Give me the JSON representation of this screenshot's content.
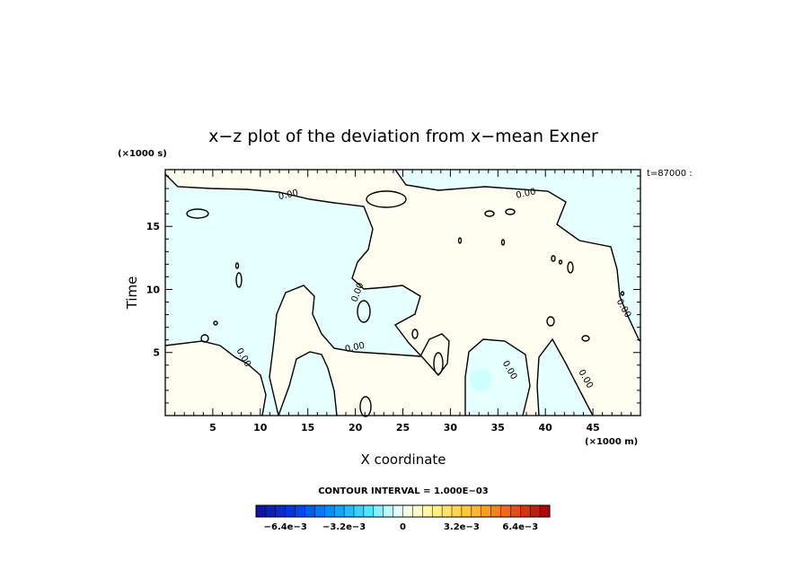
{
  "chart_data": {
    "type": "heatmap",
    "title": "x−z plot of the deviation from x−mean Exner",
    "xlabel": "X coordinate",
    "ylabel": "Time",
    "x_multiplier": "(×1000 m)",
    "y_multiplier": "(×1000 s)",
    "time_stamp": "t=87000 :",
    "xlim": [
      0,
      50
    ],
    "ylim": [
      0,
      19.5
    ],
    "x_ticks": [
      5,
      10,
      15,
      20,
      25,
      30,
      35,
      40,
      45
    ],
    "y_ticks": [
      5,
      10,
      15
    ],
    "contour_interval_text": "CONTOUR INTERVAL = 1.000E−03",
    "contour_label": "0.00",
    "colorbar": {
      "min": -0.008,
      "max": 0.008,
      "tick_labels": [
        "−6.4e−3",
        "−3.2e−3",
        "0",
        "3.2e−3",
        "6.4e−3"
      ],
      "tick_values": [
        -0.0064,
        -0.0032,
        0,
        0.0032,
        0.0064
      ],
      "levels": 30
    },
    "colors": {
      "negative_fill": "#e6ffff",
      "positive_fill": "#fffdf0",
      "blob_fill": "#ccffff",
      "contour": "#000000"
    },
    "zero_contour_label_positions": [
      [
        13,
        17.3
      ],
      [
        38,
        17.4
      ],
      [
        20.5,
        9.7
      ],
      [
        8,
        4.5
      ],
      [
        20,
        5.2
      ],
      [
        36,
        3.5
      ],
      [
        44,
        2.8
      ],
      [
        48,
        8.4
      ]
    ]
  }
}
